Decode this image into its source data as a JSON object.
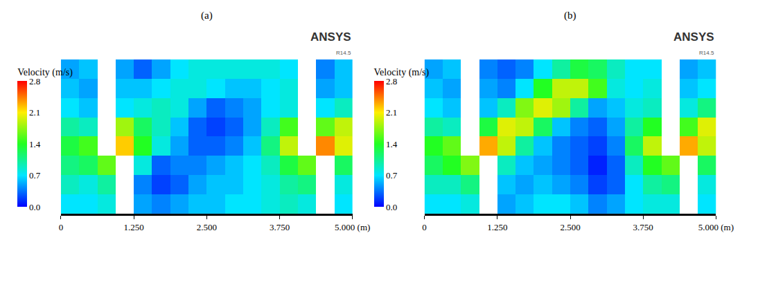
{
  "chart_data": [
    {
      "type": "heatmap",
      "title": "(a)",
      "annotations": [
        "ANSYS",
        "R14.5"
      ],
      "x": [
        0.15625,
        0.46875,
        0.78125,
        1.09375,
        1.40625,
        1.71875,
        2.03125,
        2.34375,
        2.65625,
        2.96875,
        3.28125,
        3.59375,
        3.90625,
        4.21875,
        4.53125,
        4.84375
      ],
      "y": [
        0.171875,
        0.515625,
        0.859375,
        1.203125,
        1.546875,
        1.890625,
        2.234375,
        2.578125
      ],
      "cells": [
        [
          0.7,
          0.7,
          0.8,
          null,
          0.5,
          0.4,
          0.5,
          0.6,
          0.6,
          0.7,
          0.7,
          0.8,
          0.9,
          0.8,
          null,
          0.7
        ],
        [
          0.9,
          0.8,
          1.0,
          null,
          0.4,
          0.2,
          0.3,
          0.5,
          0.6,
          0.6,
          0.7,
          0.8,
          1.0,
          1.1,
          null,
          0.8
        ],
        [
          1.1,
          1.2,
          1.6,
          null,
          0.8,
          0.3,
          0.4,
          0.4,
          0.5,
          0.6,
          0.7,
          0.9,
          1.3,
          1.6,
          null,
          1.2
        ],
        [
          1.3,
          1.5,
          null,
          2.2,
          1.4,
          0.8,
          0.5,
          0.3,
          0.3,
          0.4,
          0.6,
          1.1,
          1.9,
          null,
          2.4,
          2.0
        ],
        [
          1.0,
          0.9,
          null,
          1.8,
          1.2,
          0.9,
          0.6,
          0.3,
          0.2,
          0.3,
          0.5,
          0.9,
          1.5,
          null,
          1.6,
          1.9
        ],
        [
          0.7,
          0.6,
          null,
          0.7,
          0.8,
          0.9,
          0.8,
          0.5,
          0.3,
          0.4,
          0.5,
          0.7,
          0.8,
          null,
          0.7,
          0.9
        ],
        [
          0.6,
          0.5,
          null,
          0.6,
          0.6,
          0.7,
          0.8,
          0.8,
          0.7,
          0.6,
          0.6,
          0.7,
          0.8,
          null,
          0.5,
          0.6
        ],
        [
          0.5,
          0.6,
          null,
          0.5,
          0.3,
          0.5,
          0.7,
          0.8,
          0.8,
          0.8,
          0.8,
          0.8,
          0.7,
          null,
          0.4,
          0.6
        ]
      ],
      "xlim": [
        0,
        5
      ],
      "xticks": [
        0,
        {
          "value": 1.25,
          "label": "1.250"
        },
        {
          "value": 2.5,
          "label": "2.500"
        },
        {
          "value": 3.75,
          "label": "3.750"
        },
        {
          "value": 5,
          "label": "5.000 (m)"
        }
      ],
      "ylim": [
        0,
        2.75
      ],
      "tick_labels": "x",
      "colorbar": {
        "title": "Velocity (m/s)",
        "range": [
          0,
          2.8
        ],
        "ticks": [
          {
            "value": 0,
            "label": "0.0"
          },
          {
            "value": 0.7,
            "label": "0.7"
          },
          {
            "value": 1.4,
            "label": "1.4"
          },
          {
            "value": 2.1,
            "label": "2.1"
          },
          {
            "value": 2.8,
            "label": "2.8"
          }
        ]
      }
    },
    {
      "type": "heatmap",
      "title": "(b)",
      "annotations": [
        "ANSYS",
        "R14.5"
      ],
      "x": [
        0.15625,
        0.46875,
        0.78125,
        1.09375,
        1.40625,
        1.71875,
        2.03125,
        2.34375,
        2.65625,
        2.96875,
        3.28125,
        3.59375,
        3.90625,
        4.21875,
        4.53125,
        4.84375
      ],
      "y": [
        0.171875,
        0.515625,
        0.859375,
        1.203125,
        1.546875,
        1.890625,
        2.234375,
        2.578125
      ],
      "cells": [
        [
          0.7,
          0.7,
          0.8,
          null,
          0.5,
          0.6,
          0.7,
          0.7,
          0.6,
          0.4,
          0.5,
          0.7,
          0.8,
          0.8,
          null,
          0.7
        ],
        [
          0.9,
          0.9,
          1.1,
          null,
          0.6,
          0.5,
          0.6,
          0.5,
          0.4,
          0.2,
          0.3,
          0.7,
          1.0,
          1.1,
          null,
          0.8
        ],
        [
          1.2,
          1.4,
          1.7,
          null,
          0.9,
          0.6,
          0.5,
          0.4,
          0.3,
          0.1,
          0.3,
          0.9,
          1.4,
          1.6,
          null,
          1.2
        ],
        [
          1.4,
          1.6,
          null,
          2.3,
          1.9,
          1.0,
          0.6,
          0.4,
          0.3,
          0.2,
          0.4,
          1.2,
          1.9,
          null,
          2.3,
          1.9
        ],
        [
          1.0,
          0.9,
          null,
          1.3,
          2.0,
          1.9,
          1.2,
          0.6,
          0.4,
          0.3,
          0.5,
          1.0,
          1.4,
          null,
          1.5,
          2.0
        ],
        [
          0.7,
          0.6,
          null,
          0.6,
          0.9,
          1.7,
          2.0,
          1.8,
          1.0,
          0.5,
          0.6,
          0.8,
          0.9,
          null,
          0.8,
          1.1
        ],
        [
          0.6,
          0.5,
          null,
          0.5,
          0.4,
          0.7,
          1.4,
          1.9,
          1.9,
          1.5,
          0.8,
          0.7,
          0.8,
          null,
          0.6,
          0.7
        ],
        [
          0.5,
          0.6,
          null,
          0.4,
          0.3,
          0.4,
          0.7,
          1.0,
          1.3,
          1.2,
          0.9,
          0.7,
          0.7,
          null,
          0.5,
          0.6
        ]
      ],
      "xlim": [
        0,
        5
      ],
      "xticks": [
        0,
        {
          "value": 1.25,
          "label": "1.250"
        },
        {
          "value": 2.5,
          "label": "2.500"
        },
        {
          "value": 3.75,
          "label": "3.750"
        },
        {
          "value": 5,
          "label": "5.000 (m)"
        }
      ],
      "ylim": [
        0,
        2.75
      ],
      "tick_labels": "x",
      "colorbar": {
        "title": "Velocity (m/s)",
        "range": [
          0,
          2.8
        ],
        "ticks": [
          {
            "value": 0,
            "label": "0.0"
          },
          {
            "value": 0.7,
            "label": "0.7"
          },
          {
            "value": 1.4,
            "label": "1.4"
          },
          {
            "value": 2.1,
            "label": "2.1"
          },
          {
            "value": 2.8,
            "label": "2.8"
          }
        ]
      }
    }
  ]
}
